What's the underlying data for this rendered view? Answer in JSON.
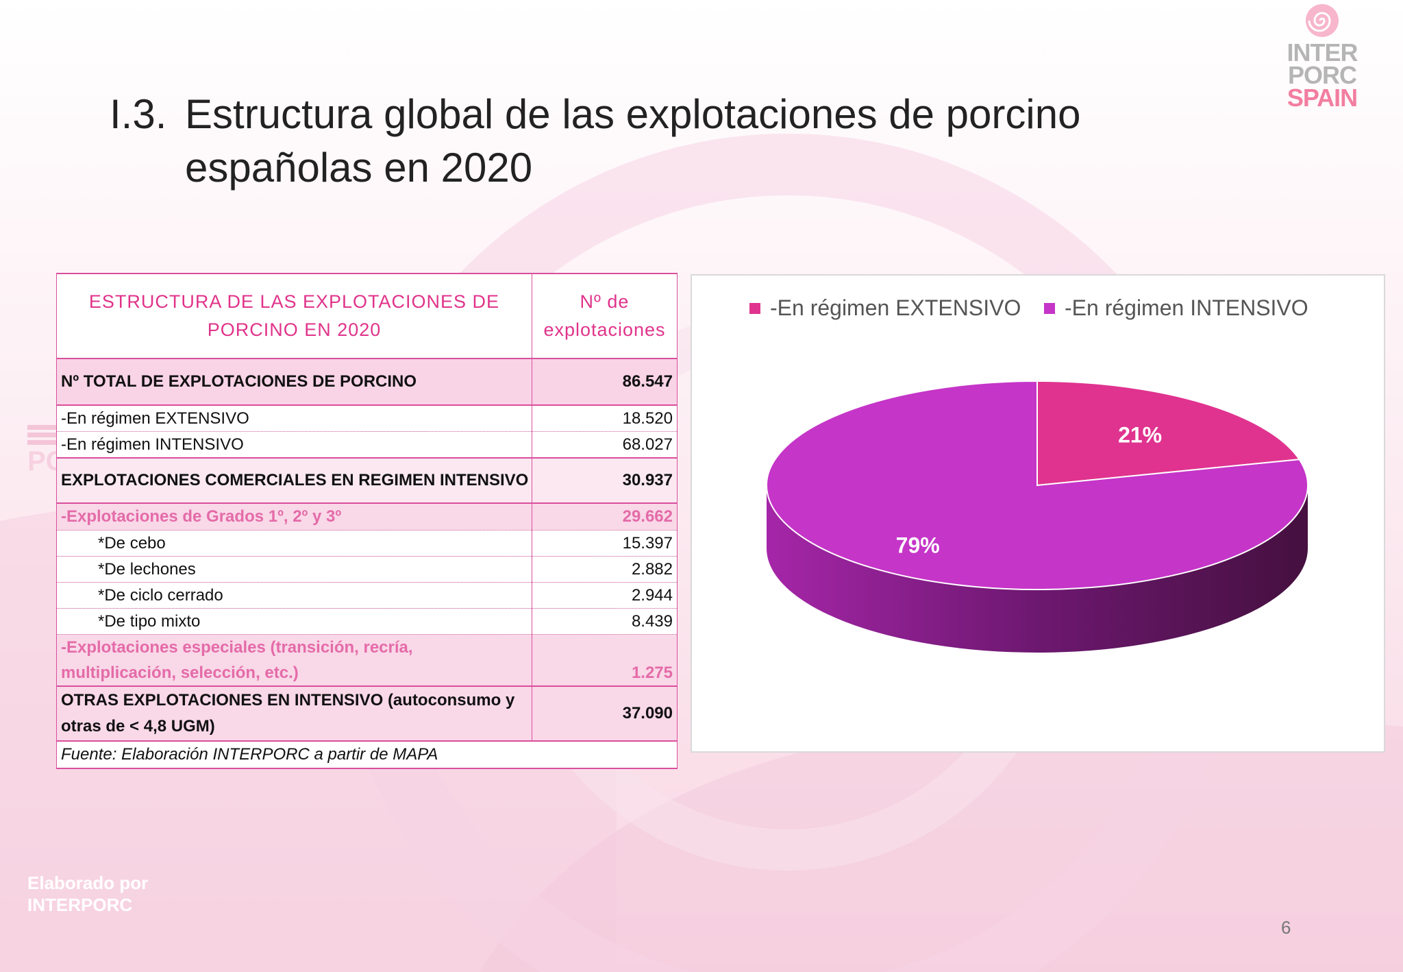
{
  "slide": {
    "title_number": "I.3.",
    "title_line1": "Estructura global de las explotaciones de porcino",
    "title_line2": "españolas en 2020",
    "page_number": "6",
    "footer_line1": "Elaborado por",
    "footer_line2": "INTERPORC"
  },
  "logo": {
    "line1": "INTER",
    "line2": "PORC",
    "line3": "SPAIN"
  },
  "watermark": {
    "text": "PORC"
  },
  "table": {
    "header_label": "ESTRUCTURA DE LAS EXPLOTACIONES DE PORCINO EN 2020",
    "header_value": "Nº de explotaciones",
    "rows": [
      {
        "label": "Nº TOTAL DE EXPLOTACIONES DE PORCINO",
        "value": "86.547"
      },
      {
        "label": "-En régimen EXTENSIVO",
        "value": "18.520"
      },
      {
        "label": "-En régimen INTENSIVO",
        "value": "68.027"
      },
      {
        "label": "EXPLOTACIONES COMERCIALES EN REGIMEN INTENSIVO",
        "value": "30.937"
      },
      {
        "label": "-Explotaciones de Grados 1º, 2º y 3º",
        "value": "29.662"
      },
      {
        "label": "*De cebo",
        "value": "15.397"
      },
      {
        "label": "*De lechones",
        "value": "2.882"
      },
      {
        "label": "*De ciclo cerrado",
        "value": "2.944"
      },
      {
        "label": "*De tipo mixto",
        "value": "8.439"
      },
      {
        "label": "-Explotaciones especiales (transición, recría, multiplicación, selección, etc.)",
        "value": "1.275"
      },
      {
        "label": "OTRAS EXPLOTACIONES EN INTENSIVO (autoconsumo y otras de < 4,8 UGM)",
        "value": "37.090"
      }
    ],
    "source": "Fuente: Elaboración INTERPORC a partir de MAPA"
  },
  "chart_data": {
    "type": "pie",
    "style": "3d",
    "legend_position": "top",
    "labels": [
      "-En régimen EXTENSIVO",
      "-En régimen INTENSIVO"
    ],
    "values": [
      21,
      79
    ],
    "data_labels": [
      "21%",
      "79%"
    ],
    "colors": [
      "#e0338f",
      "#c535c8"
    ]
  }
}
